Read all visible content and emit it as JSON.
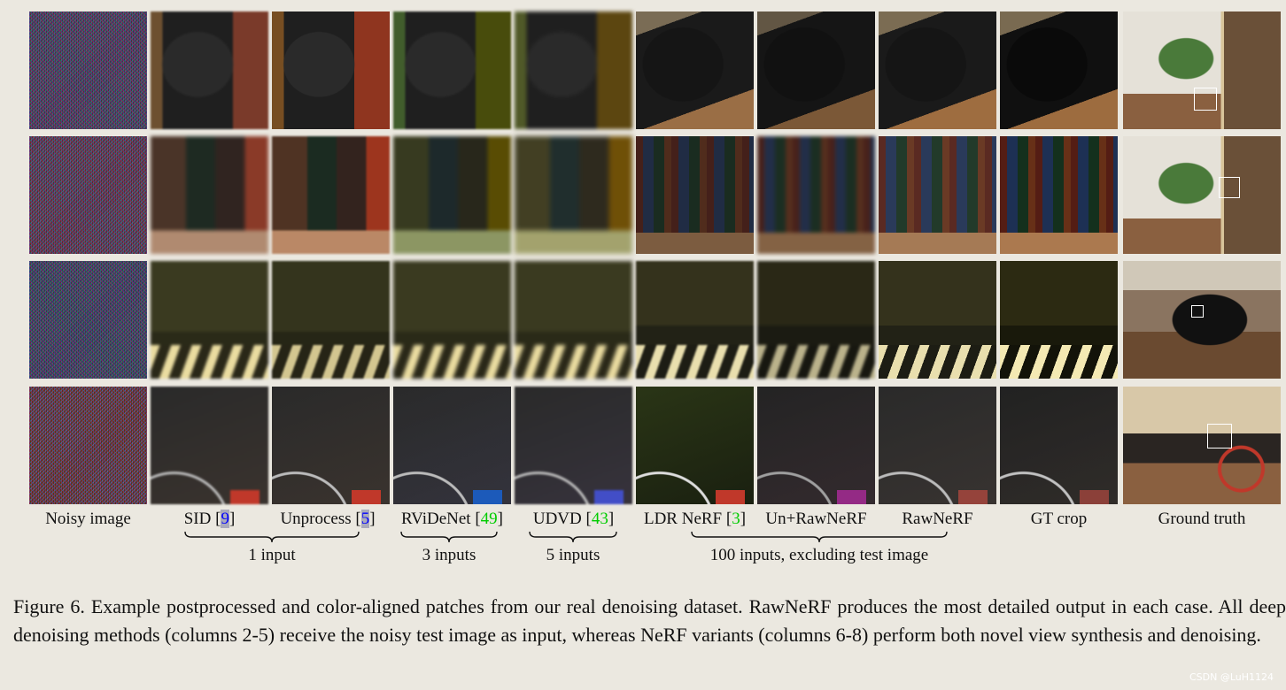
{
  "columns": [
    {
      "label": "Noisy image"
    },
    {
      "label": "SID",
      "cite": "9"
    },
    {
      "label": "Unprocess",
      "cite": "5"
    },
    {
      "label": "RViDeNet",
      "cite": "49"
    },
    {
      "label": "UDVD",
      "cite": "43"
    },
    {
      "label": "LDR NeRF",
      "cite": "3"
    },
    {
      "label": "Un+RawNeRF"
    },
    {
      "label": "RawNeRF"
    },
    {
      "label": "GT crop"
    },
    {
      "label": "Ground truth"
    }
  ],
  "groups": [
    {
      "label": "1 input"
    },
    {
      "label": "3 inputs"
    },
    {
      "label": "5 inputs"
    },
    {
      "label": "100 inputs, excluding test image"
    }
  ],
  "caption": "Figure 6. Example postprocessed and color-aligned patches from our real denoising dataset. RawNeRF produces the most detailed output in each case. All deep denoising methods (columns 2-5) receive the noisy test image as input, whereas NeRF variants (columns 6-8) perform both novel view synthesis and denoising.",
  "watermark": "CSDN @LuH1124"
}
